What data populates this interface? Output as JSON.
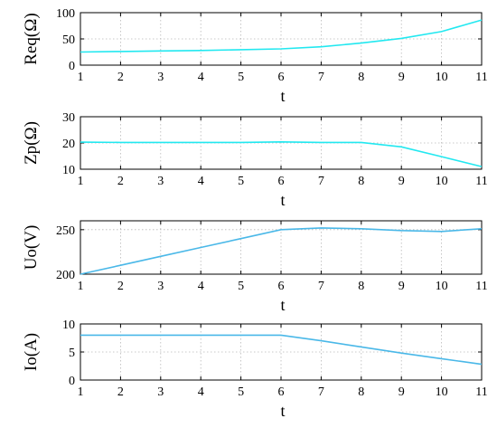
{
  "chart_data": [
    {
      "type": "line",
      "ylabel": "Req(Ω)",
      "xlabel": "t",
      "xlim": [
        1,
        11
      ],
      "ylim": [
        0,
        100
      ],
      "xticks": [
        1,
        2,
        3,
        4,
        5,
        6,
        7,
        8,
        9,
        10,
        11
      ],
      "yticks": [
        0,
        50,
        100
      ],
      "grid": true,
      "color": "#22e8f0",
      "series": [
        {
          "x": [
            1,
            2,
            3,
            4,
            5,
            6,
            7,
            8,
            9,
            10,
            11
          ],
          "y": [
            25,
            26,
            27,
            28,
            29.5,
            31,
            35,
            42,
            51,
            64,
            86
          ]
        }
      ]
    },
    {
      "type": "line",
      "ylabel": "Zp(Ω)",
      "xlabel": "t",
      "xlim": [
        1,
        11
      ],
      "ylim": [
        10,
        30
      ],
      "xticks": [
        1,
        2,
        3,
        4,
        5,
        6,
        7,
        8,
        9,
        10,
        11
      ],
      "yticks": [
        10,
        20,
        30
      ],
      "grid": true,
      "color": "#22e8f0",
      "series": [
        {
          "x": [
            1,
            2,
            3,
            4,
            5,
            6,
            7,
            8,
            9,
            10,
            11
          ],
          "y": [
            20.3,
            20.2,
            20.2,
            20.2,
            20.2,
            20.4,
            20.2,
            20.2,
            18.5,
            14.8,
            11
          ]
        }
      ]
    },
    {
      "type": "line",
      "ylabel": "Uo(V)",
      "xlabel": "t",
      "xlim": [
        1,
        11
      ],
      "ylim": [
        200,
        260
      ],
      "xticks": [
        1,
        2,
        3,
        4,
        5,
        6,
        7,
        8,
        9,
        10,
        11
      ],
      "yticks": [
        200,
        250
      ],
      "grid": true,
      "color": "#4ab8e8",
      "series": [
        {
          "x": [
            1,
            2,
            3,
            4,
            5,
            6,
            7,
            8,
            9,
            10,
            11
          ],
          "y": [
            200,
            210,
            220,
            230,
            240,
            250,
            252,
            251,
            249,
            248,
            251
          ]
        }
      ]
    },
    {
      "type": "line",
      "ylabel": "Io(A)",
      "xlabel": "t",
      "xlim": [
        1,
        11
      ],
      "ylim": [
        0,
        10
      ],
      "xticks": [
        1,
        2,
        3,
        4,
        5,
        6,
        7,
        8,
        9,
        10,
        11
      ],
      "yticks": [
        0,
        5,
        10
      ],
      "grid": true,
      "color": "#4ab8e8",
      "series": [
        {
          "x": [
            1,
            2,
            3,
            4,
            5,
            6,
            7,
            8,
            9,
            10,
            11
          ],
          "y": [
            8,
            8,
            8,
            8,
            8,
            8,
            7,
            5.9,
            4.8,
            3.8,
            2.8
          ]
        }
      ]
    }
  ]
}
